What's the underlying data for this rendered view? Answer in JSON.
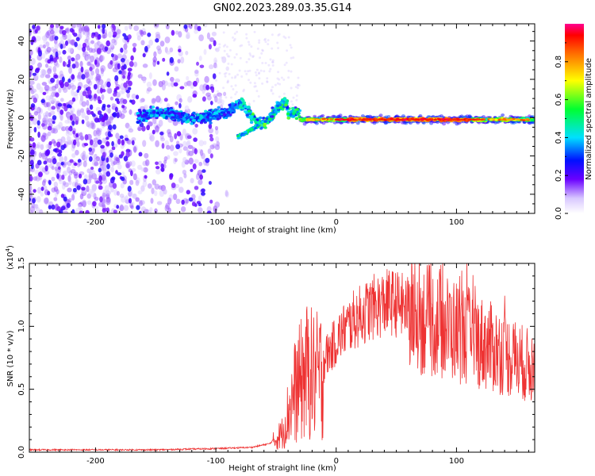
{
  "figure": {
    "title": "GN02.2023.289.03.35.G14"
  },
  "chart_data": [
    {
      "type": "heatmap",
      "xlabel": "Height of straight line (km)",
      "ylabel": "Frequency (Hz)",
      "xlim": [
        -255,
        165
      ],
      "ylim": [
        -50,
        49
      ],
      "xticks": [
        -200,
        -100,
        0,
        100
      ],
      "xtick_labels": [
        "-200",
        "-100",
        "0",
        "100"
      ],
      "yticks": [
        -40,
        -20,
        0,
        20,
        40
      ],
      "ytick_labels": [
        "-40",
        "-20",
        "0",
        "20",
        "40"
      ],
      "colorbar": {
        "label": "Normalized spectral amplitude",
        "range": [
          0,
          1
        ],
        "ticks": [
          0,
          0.2,
          0.4,
          0.6,
          0.8
        ],
        "tick_labels": [
          "0.0",
          "0.2",
          "0.4",
          "0.6",
          "0.8"
        ]
      },
      "features": [
        {
          "region": "diffuse noise",
          "x_range": [
            -255,
            -100
          ],
          "y_range": [
            -50,
            49
          ],
          "amplitude": 0.15
        },
        {
          "region": "ridge",
          "x_range": [
            -160,
            -30
          ],
          "y_center": 1,
          "amplitude": 0.3
        },
        {
          "region": "strong line",
          "x_range": [
            -30,
            165
          ],
          "y_center": -1,
          "amplitude": 0.9
        }
      ]
    },
    {
      "type": "line",
      "xlabel": "Height of straight line (km)",
      "ylabel": "SNR (10 * v/v)",
      "y_multiplier_label": "(x10",
      "y_multiplier_exp": "4",
      "y_multiplier_close": ")",
      "xlim": [
        -255,
        165
      ],
      "ylim": [
        0,
        1.5
      ],
      "xticks": [
        -200,
        -100,
        0,
        100
      ],
      "xtick_labels": [
        "-200",
        "-100",
        "0",
        "100"
      ],
      "yticks": [
        0,
        0.5,
        1.0,
        1.5
      ],
      "ytick_labels": [
        "0.0",
        "0.5",
        "1.0",
        "1.5"
      ],
      "series": [
        {
          "color": "#ee3333",
          "envelope": {
            "x": [
              -255,
              -150,
              -100,
              -70,
              -55,
              -45,
              -35,
              -25,
              -15,
              -5,
              5,
              15,
              30,
              45,
              60,
              80,
              100,
              120,
              140,
              165
            ],
            "y": [
              0.02,
              0.02,
              0.03,
              0.04,
              0.07,
              0.18,
              0.55,
              0.75,
              0.7,
              0.85,
              1.0,
              1.1,
              1.2,
              1.25,
              1.2,
              1.12,
              1.05,
              0.95,
              0.85,
              0.72
            ]
          }
        }
      ]
    }
  ]
}
